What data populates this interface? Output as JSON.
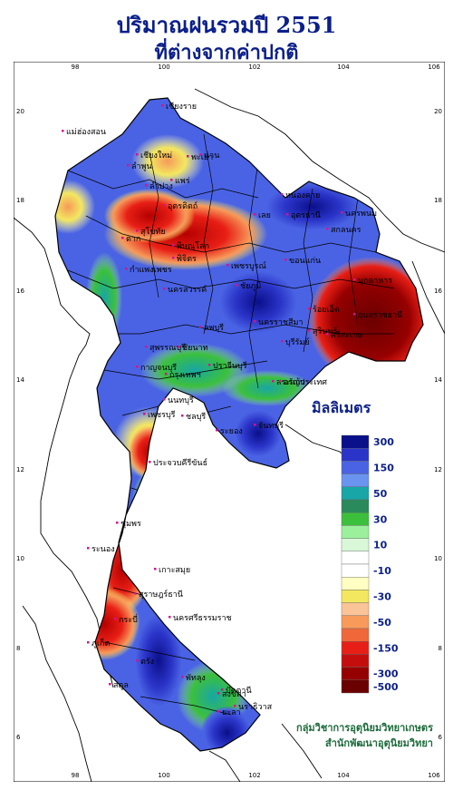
{
  "title": {
    "line1": "ปริมาณฝนรวมปี 2551",
    "line2": "ที่ต่างจากค่าปกติ"
  },
  "axes": {
    "lon_ticks": [
      "98",
      "100",
      "102",
      "104",
      "106"
    ],
    "lat_ticks": [
      "20",
      "18",
      "16",
      "14",
      "12",
      "10",
      "8",
      "6"
    ]
  },
  "legend": {
    "unit": "มิลลิเมตร",
    "bins": [
      {
        "label": "300",
        "color": "#0a0f8a"
      },
      {
        "label": "",
        "color": "#2a34c8"
      },
      {
        "label": "150",
        "color": "#4a63e4"
      },
      {
        "label": "",
        "color": "#6a94f0"
      },
      {
        "label": "50",
        "color": "#18a6a6"
      },
      {
        "label": "",
        "color": "#2b8a5b"
      },
      {
        "label": "30",
        "color": "#3cc03c"
      },
      {
        "label": "",
        "color": "#9cf09c"
      },
      {
        "label": "10",
        "color": "#d8f8d8"
      },
      {
        "label": "",
        "color": "#ffffff"
      },
      {
        "label": "-10",
        "color": "#ffffff"
      },
      {
        "label": "",
        "color": "#ffffc4"
      },
      {
        "label": "-30",
        "color": "#f3e760"
      },
      {
        "label": "",
        "color": "#fbc498"
      },
      {
        "label": "-50",
        "color": "#f79a5a"
      },
      {
        "label": "",
        "color": "#f0683a"
      },
      {
        "label": "-150",
        "color": "#e81f16"
      },
      {
        "label": "",
        "color": "#c40e0e"
      },
      {
        "label": "-300",
        "color": "#950000"
      },
      {
        "label": "-500",
        "color": "#6a0000"
      }
    ]
  },
  "place_labels": [
    "เชียงราย",
    "แม่ฮ่องสอน",
    "เชียงใหม่",
    "ลำพูน",
    "พะเยา",
    "น่าน",
    "แพร่",
    "ลำปาง",
    "อุตรดิตถ์",
    "สุโขทัย",
    "ตาก",
    "พิษณุโลก",
    "หนองคาย",
    "อุดรธานี",
    "นครพนม",
    "สกลนคร",
    "เลย",
    "ขอนแก่น",
    "มุกดาหาร",
    "เพชรบูรณ์",
    "พิจิตร",
    "กำแพงเพชร",
    "นครสวรรค์",
    "ชัยภูมิ",
    "ร้อยเอ็ด",
    "อุบลราชธานี",
    "ลพบุรี",
    "นครราชสีมา",
    "บุรีรัมย์",
    "สุรินทร์",
    "ศรีสะเกษ",
    "สุพรรณบุรี",
    "กาญจนบุรี",
    "กรุงเทพฯ",
    "ปราจีนบุรี",
    "สระแก้ว",
    "ชลบุรี",
    "ระยอง",
    "จันทบุรี",
    "เพชรบุรี",
    "ประจวบคีรีขันธ์",
    "ชุมพร",
    "ระนอง",
    "สุราษฎร์ธานี",
    "ภูเก็ต",
    "กระบี่",
    "นครศรีธรรมราช",
    "ตรัง",
    "พัทลุง",
    "สงขลา",
    "สตูล",
    "ปัตตานี",
    "ยะลา",
    "นราธิวาส",
    "เกาะสมุย",
    "ชัยนาท",
    "นนทบุรี",
    "อรัญประเทศ"
  ],
  "credit": {
    "line1": "กลุ่มวิชาการอุตุนิยมวิทยาเกษตร",
    "line2": "สำนักพัฒนาอุตุนิยมวิทยา"
  }
}
